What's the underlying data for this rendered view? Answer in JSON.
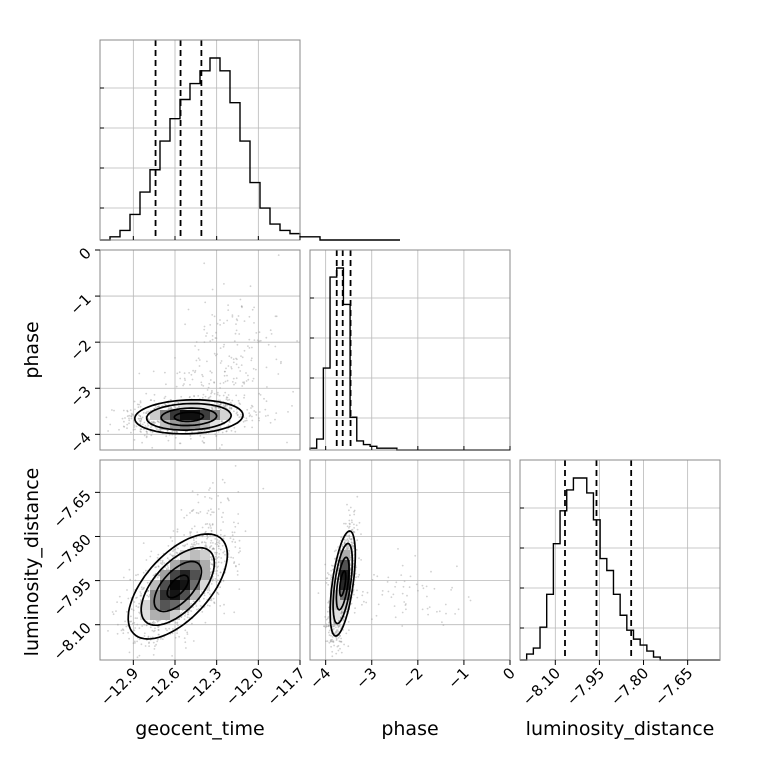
{
  "chart_data": {
    "type": "corner",
    "parameters": [
      "geocent_time",
      "phase",
      "luminosity_distance"
    ],
    "axis_labels": [
      "geocent_time",
      "phase",
      "luminosity_distance"
    ],
    "ranges": {
      "geocent_time": [
        -13.14,
        -11.7
      ],
      "phase": [
        -4.34,
        0
      ],
      "luminosity_distance": [
        -8.22,
        -7.54
      ]
    },
    "ticks": {
      "geocent_time": [
        -12.9,
        -12.6,
        -12.3,
        -12.0,
        -11.7
      ],
      "phase": [
        -4,
        -3,
        -2,
        -1,
        0
      ],
      "luminosity_distance": [
        -8.1,
        -7.95,
        -7.8,
        -7.65
      ]
    },
    "tick_labels": {
      "geocent_time": [
        "−12.9",
        "−12.6",
        "−12.3",
        "−12.0",
        "−11.7"
      ],
      "phase": [
        "−4",
        "−3",
        "−2",
        "−1",
        "0"
      ],
      "luminosity_distance": [
        "−8.10",
        "−7.95",
        "−7.80",
        "−7.65"
      ]
    },
    "quantiles": {
      "geocent_time": [
        -12.74,
        -12.56,
        -12.41
      ],
      "phase": [
        -3.76,
        -3.63,
        -3.46
      ],
      "luminosity_distance": [
        -8.067,
        -7.96,
        -7.842
      ]
    },
    "histograms": {
      "geocent_time": {
        "start": -13.14,
        "step": 0.072,
        "counts": [
          0,
          1,
          3,
          8,
          15,
          22,
          31,
          38,
          44,
          49,
          53,
          57,
          53,
          43,
          31,
          18,
          10,
          5,
          3,
          2,
          1,
          1,
          0,
          0,
          0,
          0,
          0,
          0,
          0,
          0
        ]
      },
      "phase": {
        "start": -4.34,
        "step": 0.145,
        "counts": [
          1,
          6,
          45,
          95,
          100,
          80,
          18,
          5,
          3,
          2,
          1,
          1,
          1,
          0,
          0,
          0,
          0,
          0,
          0,
          0,
          0,
          0,
          0,
          0,
          0,
          0,
          0,
          0,
          0,
          0
        ]
      },
      "luminosity_distance": {
        "start": -8.22,
        "step": 0.0227,
        "counts": [
          0,
          2,
          4,
          11,
          22,
          39,
          50,
          57,
          61,
          61,
          56,
          47,
          34,
          30,
          22,
          15,
          10,
          7,
          5,
          3,
          1,
          0,
          0,
          0,
          0,
          0,
          0,
          0,
          0,
          0
        ]
      }
    },
    "joint_distributions": [
      {
        "x": "geocent_time",
        "y": "phase",
        "mean": [
          -12.5,
          -3.62
        ],
        "std": [
          0.19,
          0.18
        ],
        "rho": 0.1,
        "tail": {
          "mean": [
            -12.25,
            -2.5
          ],
          "std": [
            0.22,
            0.85
          ],
          "rho": 0.35,
          "fraction": 0.18
        },
        "contour_scale": [
          0.55,
          1.05,
          1.6,
          2.05
        ]
      },
      {
        "x": "geocent_time",
        "y": "luminosity_distance",
        "mean": [
          -12.58,
          -7.97
        ],
        "std": [
          0.17,
          0.085
        ],
        "rho": 0.6,
        "tail": {
          "mean": [
            -12.4,
            -7.85
          ],
          "std": [
            0.12,
            0.12
          ],
          "rho": 0.5,
          "fraction": 0.12
        },
        "contour_scale": [
          0.45,
          1.0,
          1.55,
          2.1
        ]
      },
      {
        "x": "phase",
        "y": "luminosity_distance",
        "mean": [
          -3.63,
          -7.96
        ],
        "std": [
          0.13,
          0.085
        ],
        "rho": 0.55,
        "tail": {
          "mean": [
            -2.5,
            -8.0
          ],
          "std": [
            0.8,
            0.06
          ],
          "rho": 0.0,
          "fraction": 0.05
        },
        "contour_scale": [
          0.5,
          1.05,
          1.6,
          2.1
        ]
      }
    ],
    "grid": true,
    "legend": "none"
  }
}
